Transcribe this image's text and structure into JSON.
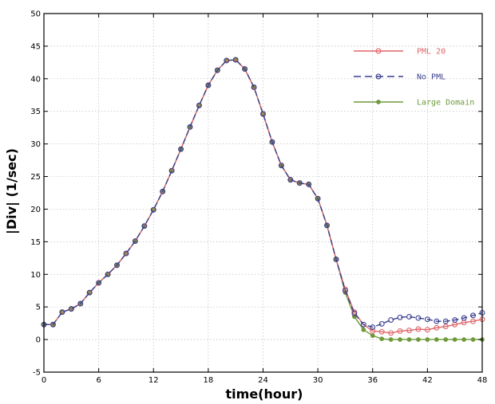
{
  "chart_data": {
    "type": "line",
    "title": "",
    "xlabel": "time(hour)",
    "ylabel": "|Div| (1/sec)",
    "xlim": [
      0,
      48
    ],
    "ylim": [
      -5,
      50
    ],
    "xticks": [
      0,
      6,
      12,
      18,
      24,
      30,
      36,
      42,
      48
    ],
    "yticks": [
      -5,
      0,
      5,
      10,
      15,
      20,
      25,
      30,
      35,
      40,
      45,
      50
    ],
    "grid": true,
    "legend_position": "top-right",
    "x": [
      0,
      1,
      2,
      3,
      4,
      5,
      6,
      7,
      8,
      9,
      10,
      11,
      12,
      13,
      14,
      15,
      16,
      17,
      18,
      19,
      20,
      21,
      22,
      23,
      24,
      25,
      26,
      27,
      28,
      29,
      30,
      31,
      32,
      33,
      34,
      35,
      36,
      37,
      38,
      39,
      40,
      41,
      42,
      43,
      44,
      45,
      46,
      47,
      48
    ],
    "series": [
      {
        "name": "PML 20",
        "color": "#e0666a",
        "line_style": "solid",
        "marker": "open-circle",
        "values": [
          2.3,
          2.3,
          4.2,
          4.7,
          5.5,
          7.2,
          8.7,
          10.0,
          11.4,
          13.2,
          15.1,
          17.4,
          19.9,
          22.7,
          25.9,
          29.2,
          32.6,
          35.9,
          39.0,
          41.3,
          42.8,
          42.9,
          41.5,
          38.7,
          34.6,
          30.3,
          26.7,
          24.5,
          24.0,
          23.8,
          21.6,
          17.5,
          12.3,
          7.7,
          4.2,
          2.3,
          1.3,
          1.2,
          1.0,
          1.3,
          1.4,
          1.6,
          1.5,
          1.8,
          2.0,
          2.3,
          2.6,
          2.8,
          3.1
        ]
      },
      {
        "name": "No PML",
        "color": "#3a3f8f",
        "line_style": "dashed",
        "marker": "open-circle",
        "values": [
          2.3,
          2.3,
          4.2,
          4.7,
          5.5,
          7.2,
          8.7,
          10.0,
          11.4,
          13.2,
          15.1,
          17.4,
          19.9,
          22.7,
          25.9,
          29.2,
          32.6,
          35.9,
          39.0,
          41.3,
          42.8,
          42.9,
          41.5,
          38.7,
          34.6,
          30.3,
          26.7,
          24.5,
          24.0,
          23.8,
          21.6,
          17.5,
          12.3,
          7.5,
          4.0,
          2.3,
          1.9,
          2.4,
          3.0,
          3.4,
          3.5,
          3.3,
          3.1,
          2.8,
          2.8,
          3.0,
          3.3,
          3.7,
          4.1
        ]
      },
      {
        "name": "Large Domain",
        "color": "#6e9a3a",
        "line_style": "solid",
        "marker": "filled-circle",
        "values": [
          2.3,
          2.3,
          4.2,
          4.7,
          5.5,
          7.2,
          8.7,
          10.0,
          11.4,
          13.2,
          15.1,
          17.4,
          19.9,
          22.7,
          25.9,
          29.2,
          32.6,
          35.9,
          39.0,
          41.3,
          42.8,
          42.9,
          41.5,
          38.7,
          34.6,
          30.3,
          26.7,
          24.5,
          24.0,
          23.8,
          21.6,
          17.5,
          12.3,
          7.2,
          3.5,
          1.5,
          0.6,
          0.1,
          0.0,
          0.0,
          0.0,
          0.0,
          0.0,
          0.0,
          0.0,
          0.0,
          0.0,
          0.0,
          0.0
        ]
      }
    ]
  }
}
